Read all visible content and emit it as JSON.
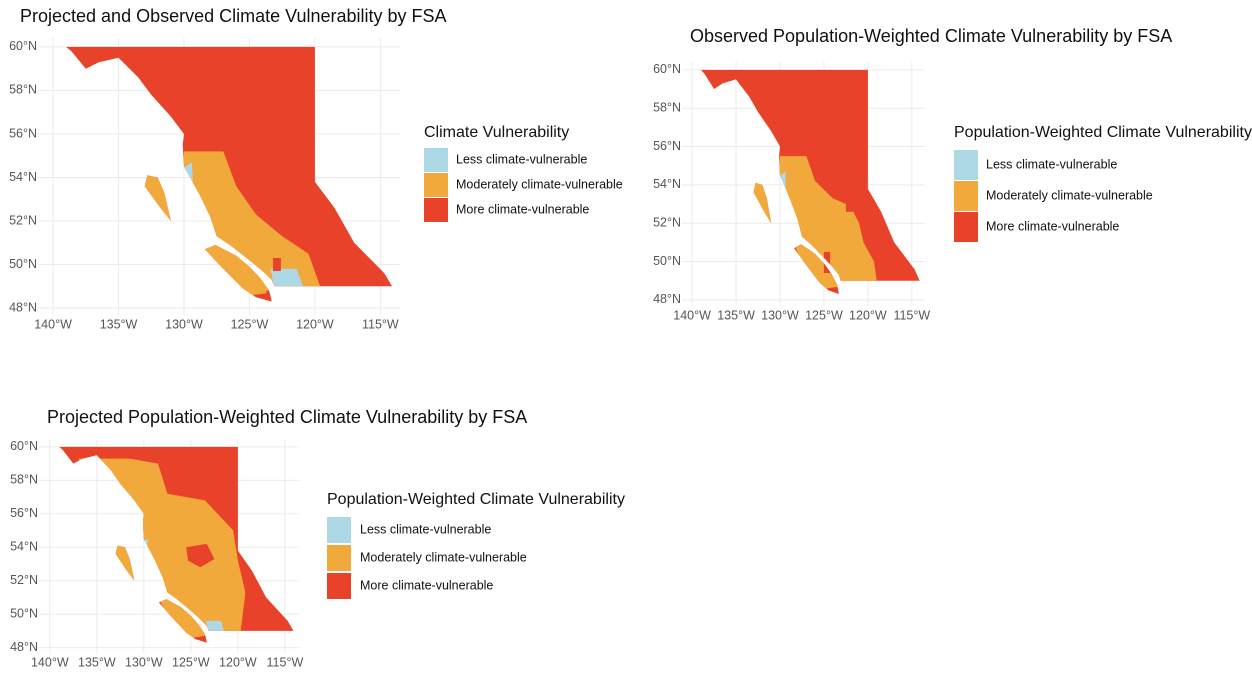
{
  "chart_data": [
    {
      "type": "map",
      "title": "Projected and Observed Climate Vulnerability by FSA",
      "legend_title": "Climate Vulnerability",
      "legend": [
        {
          "label": "Less climate-vulnerable",
          "color": "#add8e6"
        },
        {
          "label": "Moderately climate-vulnerable",
          "color": "#f2a93b"
        },
        {
          "label": "More climate-vulnerable",
          "color": "#e8432a"
        }
      ],
      "xlim": [
        -141.15,
        -113.5
      ],
      "ylim": [
        47.68,
        60.41
      ],
      "xticks": [
        {
          "value": -140,
          "label": "140°W"
        },
        {
          "value": -135,
          "label": "135°W"
        },
        {
          "value": -130,
          "label": "130°W"
        },
        {
          "value": -125,
          "label": "125°W"
        },
        {
          "value": -120,
          "label": "120°W"
        },
        {
          "value": -115,
          "label": "115°W"
        }
      ],
      "yticks": [
        {
          "value": 48,
          "label": "48°N"
        },
        {
          "value": 50,
          "label": "50°N"
        },
        {
          "value": 52,
          "label": "52°N"
        },
        {
          "value": 54,
          "label": "54°N"
        },
        {
          "value": 56,
          "label": "56°N"
        },
        {
          "value": 58,
          "label": "58°N"
        },
        {
          "value": 60,
          "label": "60°N"
        }
      ],
      "grid": true
    },
    {
      "type": "map",
      "title": "Observed Population-Weighted Climate Vulnerability by FSA",
      "legend_title": "Population-Weighted Climate Vulnerability",
      "legend": [
        {
          "label": "Less climate-vulnerable",
          "color": "#add8e6"
        },
        {
          "label": "Moderately climate-vulnerable",
          "color": "#f2a93b"
        },
        {
          "label": "More climate-vulnerable",
          "color": "#e8432a"
        }
      ],
      "xlim": [
        -141.15,
        -113.5
      ],
      "ylim": [
        47.68,
        60.41
      ],
      "xticks": [
        {
          "value": -140,
          "label": "140°W"
        },
        {
          "value": -135,
          "label": "135°W"
        },
        {
          "value": -130,
          "label": "130°W"
        },
        {
          "value": -125,
          "label": "125°W"
        },
        {
          "value": -120,
          "label": "120°W"
        },
        {
          "value": -115,
          "label": "115°W"
        }
      ],
      "yticks": [
        {
          "value": 48,
          "label": "48°N"
        },
        {
          "value": 50,
          "label": "50°N"
        },
        {
          "value": 52,
          "label": "52°N"
        },
        {
          "value": 54,
          "label": "54°N"
        },
        {
          "value": 56,
          "label": "56°N"
        },
        {
          "value": 58,
          "label": "58°N"
        },
        {
          "value": 60,
          "label": "60°N"
        }
      ],
      "grid": true
    },
    {
      "type": "map",
      "title": "Projected Population-Weighted Climate Vulnerability by FSA",
      "legend_title": "Population-Weighted Climate Vulnerability",
      "legend": [
        {
          "label": "Less climate-vulnerable",
          "color": "#add8e6"
        },
        {
          "label": "Moderately climate-vulnerable",
          "color": "#f2a93b"
        },
        {
          "label": "More climate-vulnerable",
          "color": "#e8432a"
        }
      ],
      "xlim": [
        -141.15,
        -113.5
      ],
      "ylim": [
        47.68,
        60.41
      ],
      "xticks": [
        {
          "value": -140,
          "label": "140°W"
        },
        {
          "value": -135,
          "label": "135°W"
        },
        {
          "value": -130,
          "label": "130°W"
        },
        {
          "value": -125,
          "label": "125°W"
        },
        {
          "value": -120,
          "label": "120°W"
        },
        {
          "value": -115,
          "label": "115°W"
        }
      ],
      "yticks": [
        {
          "value": 48,
          "label": "48°N"
        },
        {
          "value": 50,
          "label": "50°N"
        },
        {
          "value": 52,
          "label": "52°N"
        },
        {
          "value": 54,
          "label": "54°N"
        },
        {
          "value": 56,
          "label": "56°N"
        },
        {
          "value": 58,
          "label": "58°N"
        },
        {
          "value": 60,
          "label": "60°N"
        }
      ],
      "grid": true
    }
  ]
}
